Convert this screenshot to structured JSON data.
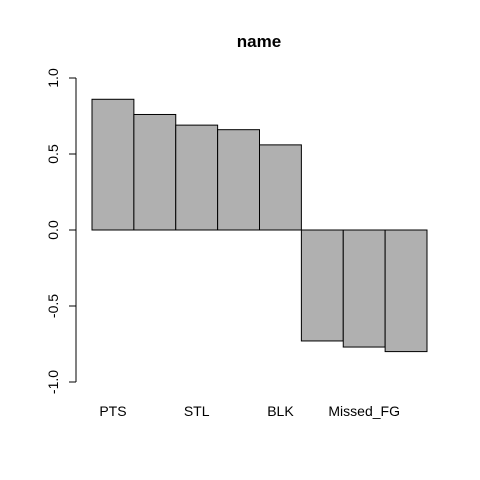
{
  "chart_data": {
    "type": "bar",
    "title": "name",
    "xlabel": "",
    "ylabel": "",
    "categories": [
      "PTS",
      "",
      "STL",
      "",
      "BLK",
      "",
      "Missed_FG",
      ""
    ],
    "values": [
      0.86,
      0.76,
      0.69,
      0.66,
      0.56,
      -0.73,
      -0.77,
      -0.8
    ],
    "ylim": [
      -1.0,
      1.0
    ],
    "yticks": [
      "-1.0",
      "-0.5",
      "0.0",
      "0.5",
      "1.0"
    ],
    "grid": false,
    "legend": "none",
    "bar_color": "#b0b0b0",
    "edge_color": "#000000"
  }
}
